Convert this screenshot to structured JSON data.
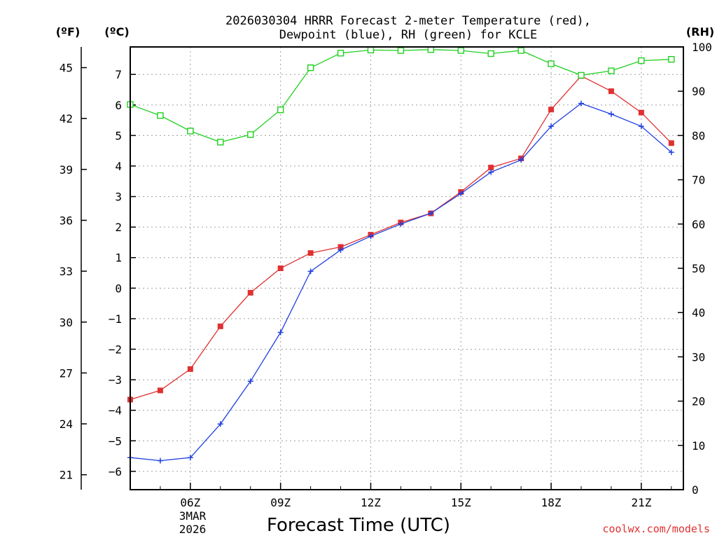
{
  "chart_data": {
    "type": "line",
    "title_line1": "2026030304 HRRR Forecast 2-meter Temperature (red),",
    "title_line2": "Dewpoint (blue), RH (green) for KCLE",
    "xlabel": "Forecast Time (UTC)",
    "credit": "coolwx.com/models",
    "unit_f": "(ºF)",
    "unit_c": "(ºC)",
    "unit_rh": "(RH)",
    "x_range": [
      3,
      21.4
    ],
    "c_range": [
      -6.6,
      7.9
    ],
    "rh_range": [
      0,
      100
    ],
    "f_ticks": [
      "45",
      "42",
      "39",
      "36",
      "33",
      "30",
      "27",
      "24",
      "21"
    ],
    "c_ticks": [
      "7",
      "6",
      "5",
      "4",
      "3",
      "2",
      "1",
      "0",
      "−1",
      "−2",
      "−3",
      "−4",
      "−5",
      "−6"
    ],
    "rh_ticks": [
      "100",
      "90",
      "80",
      "70",
      "60",
      "50",
      "40",
      "30",
      "20",
      "10",
      "0"
    ],
    "x_ticks": [
      {
        "hour": 5,
        "label": "06Z"
      },
      {
        "hour": 8,
        "label": "09Z"
      },
      {
        "hour": 11,
        "label": "12Z"
      },
      {
        "hour": 14,
        "label": "15Z"
      },
      {
        "hour": 17,
        "label": "18Z"
      },
      {
        "hour": 20,
        "label": "21Z"
      }
    ],
    "date_line1": "3MAR",
    "date_line2": "2026",
    "colors": {
      "temperature": "#e03030",
      "dewpoint": "#2040e0",
      "rh": "#20d020"
    },
    "x": [
      3,
      4,
      5,
      6,
      7,
      8,
      9,
      10,
      11,
      12,
      13,
      14,
      15,
      16,
      17,
      18,
      19,
      20,
      21
    ],
    "series": [
      {
        "name": "Temperature (°C)",
        "key": "temperature",
        "values": [
          -3.65,
          -3.35,
          -2.65,
          -1.25,
          -0.15,
          0.65,
          1.15,
          1.35,
          1.75,
          2.15,
          2.45,
          3.15,
          3.95,
          4.25,
          5.85,
          6.95,
          6.45,
          5.75,
          4.75
        ]
      },
      {
        "name": "Dewpoint (°C)",
        "key": "dewpoint",
        "values": [
          -5.55,
          -5.65,
          -5.55,
          -4.45,
          -3.05,
          -1.45,
          0.55,
          1.25,
          1.7,
          2.1,
          2.45,
          3.1,
          3.8,
          4.2,
          5.3,
          6.05,
          5.7,
          5.3,
          4.45
        ]
      },
      {
        "name": "RH (%)",
        "key": "rh",
        "values": [
          87,
          84.5,
          81,
          78.5,
          80.2,
          85.8,
          95.3,
          98.6,
          99.3,
          99.2,
          99.4,
          99.2,
          98.5,
          99.2,
          96.2,
          93.6,
          94.6,
          96.9,
          97.2
        ]
      }
    ]
  }
}
